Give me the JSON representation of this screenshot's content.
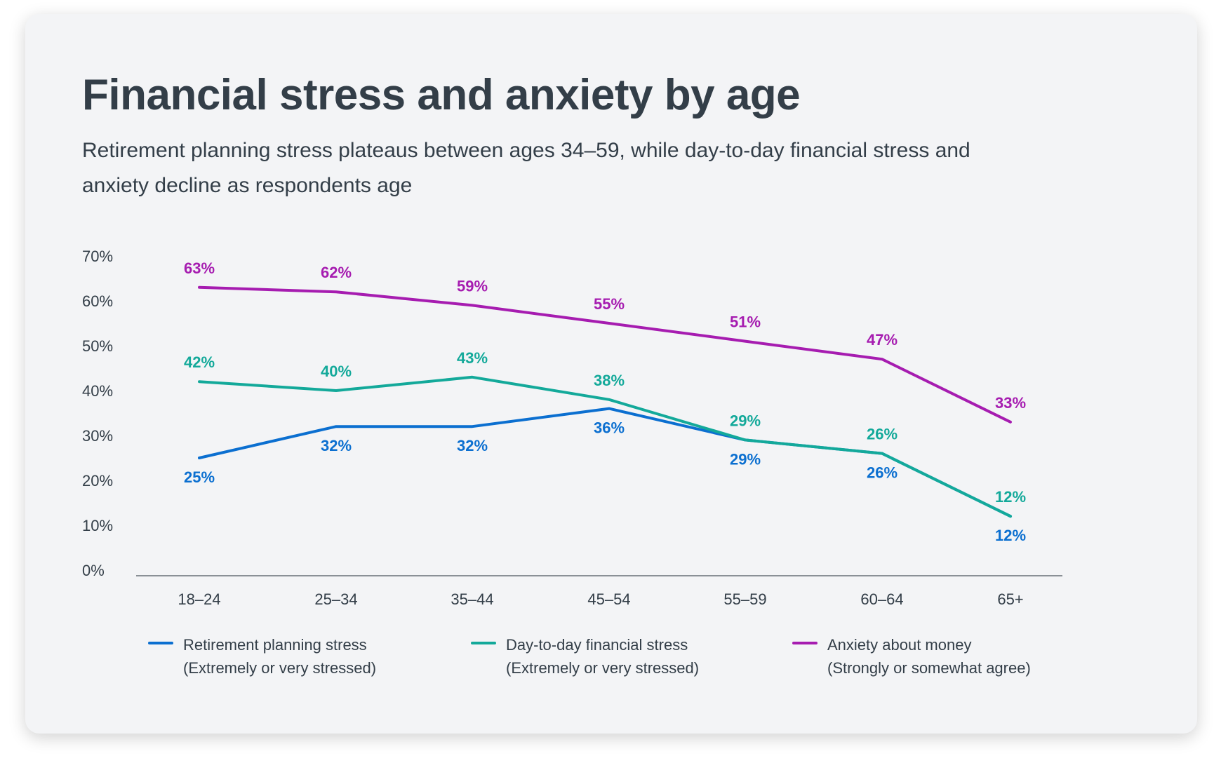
{
  "chart_data": {
    "type": "line",
    "title": "Financial stress and anxiety by age",
    "subtitle": "Retirement planning stress plateaus between ages 34–59, while day-to-day financial stress and anxiety decline as respondents age",
    "categories": [
      "18–24",
      "25–34",
      "35–44",
      "45–54",
      "55–59",
      "60–64",
      "65+"
    ],
    "yticks": [
      "0%",
      "10%",
      "20%",
      "30%",
      "40%",
      "50%",
      "60%",
      "70%"
    ],
    "ylim": [
      0,
      70
    ],
    "xlabel": "",
    "ylabel": "",
    "grid": false,
    "legend_position": "bottom",
    "series": [
      {
        "name": "Retirement planning stress",
        "sub": "(Extremely or very stressed)",
        "color": "#0b6fd0",
        "values": [
          25,
          32,
          32,
          36,
          29,
          26,
          12
        ],
        "labels": [
          "25%",
          "32%",
          "32%",
          "36%",
          "29%",
          "26%",
          "12%"
        ],
        "label_side": [
          "below",
          "below",
          "below",
          "below",
          "below",
          "below",
          "below"
        ]
      },
      {
        "name": "Day-to-day financial stress",
        "sub": "(Extremely or very stressed)",
        "color": "#13a99a",
        "values": [
          42,
          40,
          43,
          38,
          29,
          26,
          12
        ],
        "labels": [
          "42%",
          "40%",
          "43%",
          "38%",
          "29%",
          "26%",
          "12%"
        ],
        "label_side": [
          "above",
          "above",
          "above",
          "above",
          "above",
          "above",
          "above"
        ]
      },
      {
        "name": "Anxiety about money",
        "sub": "(Strongly or somewhat agree)",
        "color": "#a61cb0",
        "values": [
          63,
          62,
          59,
          55,
          51,
          47,
          33
        ],
        "labels": [
          "63%",
          "62%",
          "59%",
          "55%",
          "51%",
          "47%",
          "33%"
        ],
        "label_side": [
          "above",
          "above",
          "above",
          "above",
          "above",
          "above",
          "above"
        ]
      }
    ]
  }
}
